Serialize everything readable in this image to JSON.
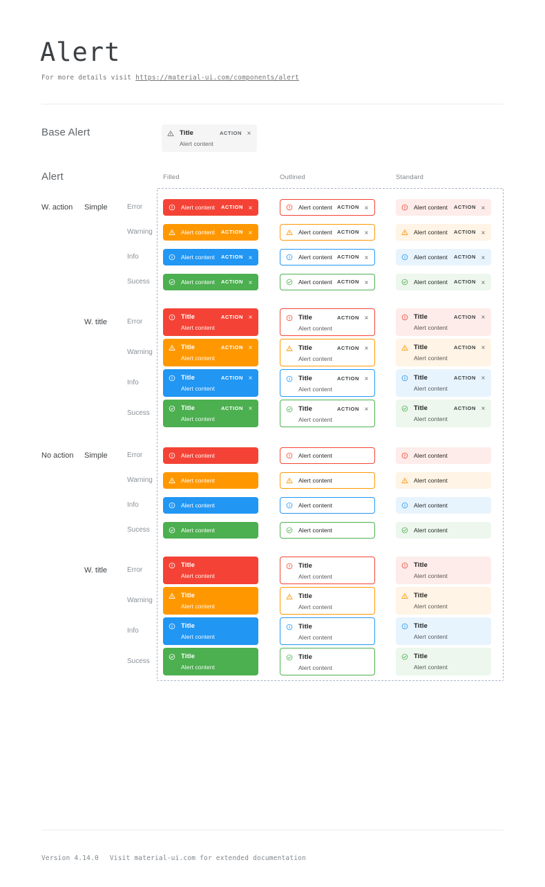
{
  "page": {
    "title": "Alert",
    "subtitle_prefix": "For more details visit ",
    "subtitle_link": "https://material-ui.com/components/alert",
    "footer": {
      "version": "Version 4.14.0",
      "note": "Visit material-ui.com for extended documentation"
    }
  },
  "base_alert": {
    "section_label": "Base Alert",
    "icon": "warning-triangle-icon",
    "title": "Title",
    "content": "Alert content",
    "action_label": "ACTION",
    "close_icon": "close-icon",
    "colors": {
      "background": "#f5f5f5",
      "icon": "#757575",
      "title": "#212121",
      "content": "#5f6368",
      "action": "#5f6368",
      "close": "#5f6368"
    }
  },
  "alert_section": {
    "section_label": "Alert",
    "columns": [
      "Filled",
      "Outlined",
      "Standard"
    ],
    "action_label": "ACTION",
    "close_icon": "close-icon",
    "alert_title": "Title",
    "alert_content": "Alert content",
    "row_groups": [
      {
        "label": "W. action",
        "subgroups": [
          {
            "label": "Simple",
            "with_title": false,
            "with_action": true
          },
          {
            "label": "W. title",
            "with_title": true,
            "with_action": true
          }
        ]
      },
      {
        "label": "No action",
        "subgroups": [
          {
            "label": "Simple",
            "with_title": false,
            "with_action": false
          },
          {
            "label": "W. title",
            "with_title": true,
            "with_action": false
          }
        ]
      }
    ],
    "severities": [
      {
        "label": "Error",
        "key": "error",
        "color": "#f44336",
        "standard_background": "#fdecea",
        "icon": "error-icon"
      },
      {
        "label": "Warning",
        "key": "warning",
        "color": "#ff9800",
        "standard_background": "#fff4e5",
        "icon": "warning-icon"
      },
      {
        "label": "Info",
        "key": "info",
        "color": "#2196f3",
        "standard_background": "#e8f4fd",
        "icon": "info-icon"
      },
      {
        "label": "Sucess",
        "key": "success",
        "color": "#4caf50",
        "standard_background": "#edf7ed",
        "icon": "success-icon"
      }
    ],
    "text_colors": {
      "filled_text": "#ffffff",
      "filled_content": "rgba(255,255,255,0.95)",
      "dark_title": "rgba(0,0,0,0.87)",
      "dark_content": "rgba(0,0,0,0.67)",
      "action_dark": "#3c4043",
      "close_dark": "#5f6368"
    }
  },
  "layout_colors": {
    "heading": "#3c4043",
    "muted": "#80868b",
    "section_label": "#5f6368",
    "group_label": "#3c4043",
    "severity_label": "#8a9097",
    "divider": "#ededed",
    "dashed_border": "#a9b3c9",
    "link": "#757575",
    "subtitle": "#757575"
  }
}
